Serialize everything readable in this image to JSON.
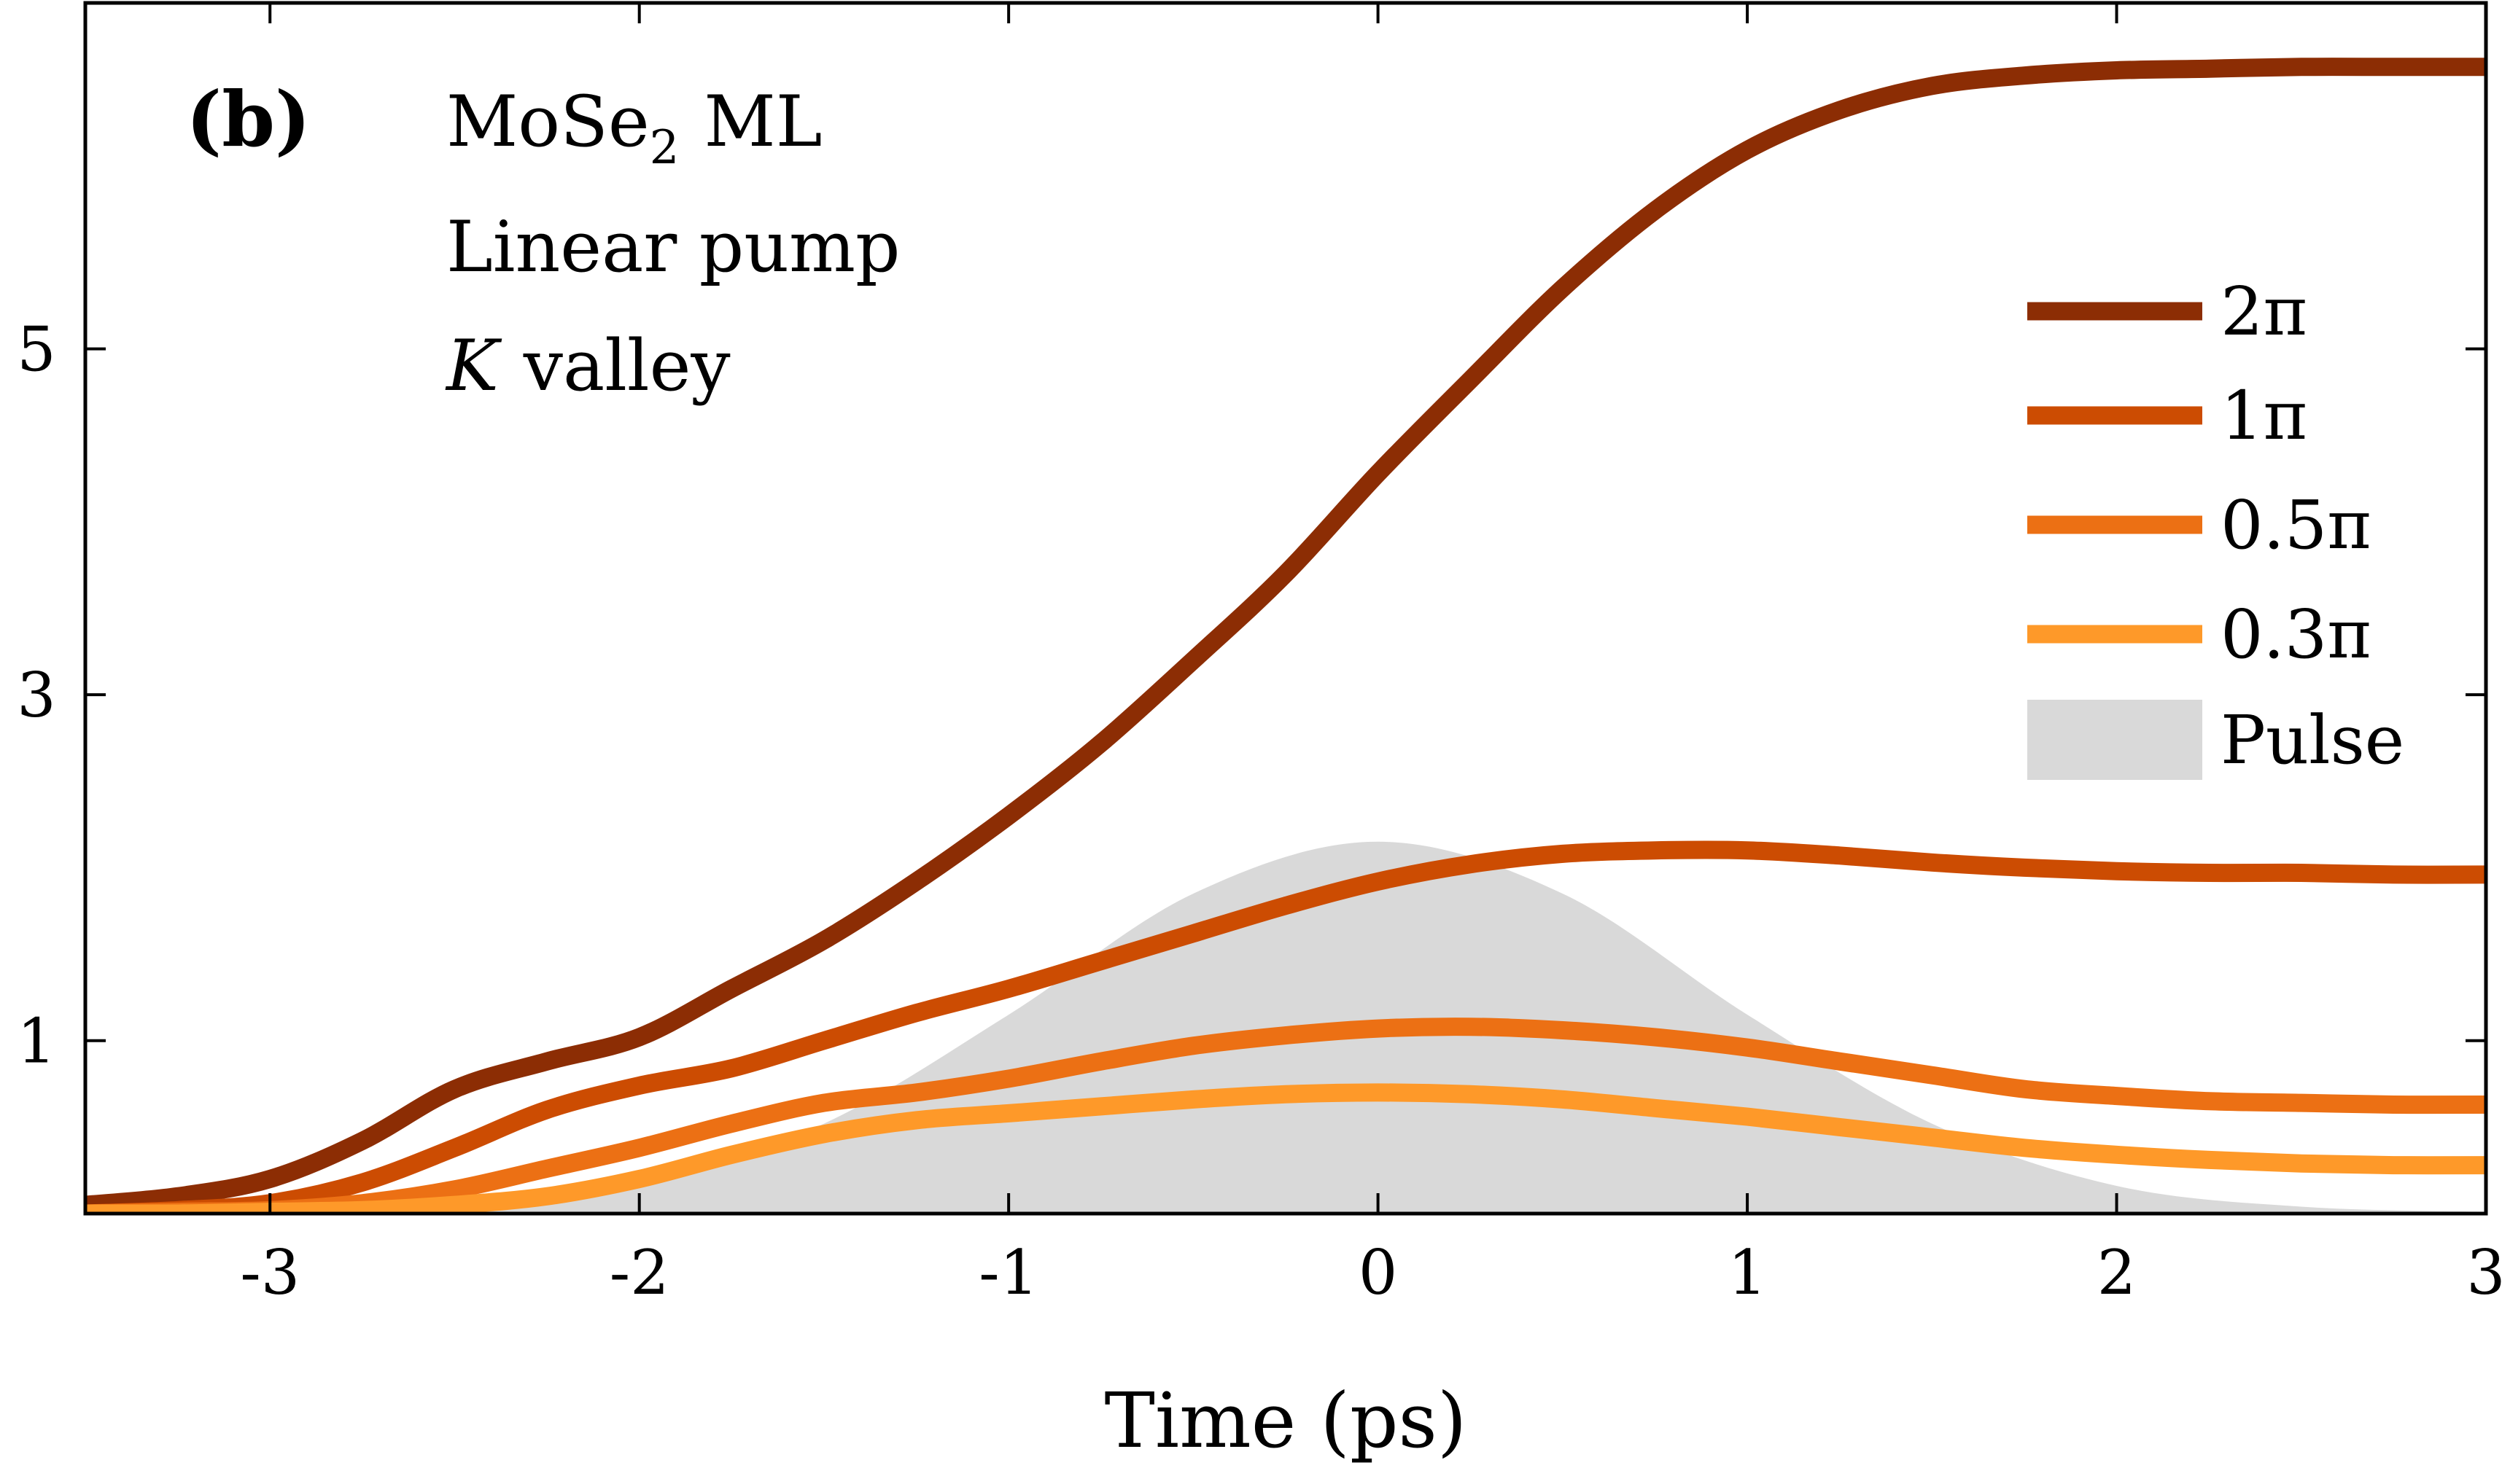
{
  "chart_data": {
    "type": "line",
    "title": "",
    "xlabel": "Time (ps)",
    "ylabel": "",
    "xlim": [
      -3.5,
      3
    ],
    "ylim": [
      0,
      7
    ],
    "xticks": [
      -3,
      -2,
      -1,
      0,
      1,
      2,
      3
    ],
    "xtick_labels": [
      "-3",
      "-2",
      "-1",
      "0",
      "1",
      "2",
      "3"
    ],
    "yticks": [
      1,
      3,
      5
    ],
    "ytick_labels": [
      "1",
      "3",
      "5"
    ],
    "grid": false,
    "legend_position": "right",
    "panel_label": "(b)",
    "annotations": {
      "line1_main": "MoSe",
      "line1_sub": "2",
      "line1_tail": "ML",
      "line2": "Linear pump",
      "line3_italic": "K",
      "line3_tail": "valley"
    },
    "pulse": {
      "name": "Pulse",
      "color": "#d9d9d9",
      "x": [
        -3.5,
        -3.0,
        -2.5,
        -2.0,
        -1.5,
        -1.0,
        -0.5,
        0.0,
        0.5,
        1.0,
        1.5,
        2.0,
        2.5,
        3.0
      ],
      "y": [
        0.0,
        0.01,
        0.04,
        0.16,
        0.52,
        1.15,
        1.85,
        2.15,
        1.85,
        1.15,
        0.52,
        0.16,
        0.04,
        0.01
      ]
    },
    "series": [
      {
        "name": "2π",
        "color": "#8c2d04",
        "x": [
          -3.5,
          -3.25,
          -3.0,
          -2.75,
          -2.5,
          -2.25,
          -2.0,
          -1.75,
          -1.5,
          -1.25,
          -1.0,
          -0.75,
          -0.5,
          -0.25,
          0.0,
          0.25,
          0.5,
          0.75,
          1.0,
          1.25,
          1.5,
          1.75,
          2.0,
          2.25,
          2.5,
          2.75,
          3.0
        ],
        "y": [
          0.05,
          0.1,
          0.2,
          0.42,
          0.72,
          0.88,
          1.02,
          1.3,
          1.58,
          1.92,
          2.3,
          2.72,
          3.2,
          3.7,
          4.28,
          4.82,
          5.35,
          5.8,
          6.15,
          6.38,
          6.52,
          6.58,
          6.61,
          6.62,
          6.63,
          6.63,
          6.63
        ]
      },
      {
        "name": "1π",
        "color": "#cc4c02",
        "x": [
          -3.5,
          -3.25,
          -3.0,
          -2.75,
          -2.5,
          -2.25,
          -2.0,
          -1.75,
          -1.5,
          -1.25,
          -1.0,
          -0.75,
          -0.5,
          -0.25,
          0.0,
          0.25,
          0.5,
          0.75,
          1.0,
          1.25,
          1.5,
          1.75,
          2.0,
          2.25,
          2.5,
          2.75,
          3.0
        ],
        "y": [
          0.0,
          0.02,
          0.06,
          0.18,
          0.38,
          0.6,
          0.74,
          0.84,
          1.0,
          1.16,
          1.3,
          1.46,
          1.62,
          1.78,
          1.92,
          2.02,
          2.08,
          2.1,
          2.1,
          2.07,
          2.03,
          2.0,
          1.98,
          1.97,
          1.97,
          1.96,
          1.96
        ]
      },
      {
        "name": "0.5π",
        "color": "#ec7014",
        "x": [
          -3.5,
          -3.25,
          -3.0,
          -2.75,
          -2.5,
          -2.25,
          -2.0,
          -1.75,
          -1.5,
          -1.25,
          -1.0,
          -0.75,
          -0.5,
          -0.25,
          0.0,
          0.25,
          0.5,
          0.75,
          1.0,
          1.25,
          1.5,
          1.75,
          2.0,
          2.25,
          2.5,
          2.75,
          3.0
        ],
        "y": [
          0.0,
          0.01,
          0.02,
          0.06,
          0.14,
          0.26,
          0.38,
          0.52,
          0.64,
          0.7,
          0.78,
          0.88,
          0.97,
          1.03,
          1.07,
          1.08,
          1.06,
          1.02,
          0.96,
          0.88,
          0.8,
          0.72,
          0.68,
          0.65,
          0.64,
          0.63,
          0.63
        ]
      },
      {
        "name": "0.3π",
        "color": "#fe9929",
        "x": [
          -3.5,
          -3.25,
          -3.0,
          -2.75,
          -2.5,
          -2.25,
          -2.0,
          -1.75,
          -1.5,
          -1.25,
          -1.0,
          -0.75,
          -0.5,
          -0.25,
          0.0,
          0.25,
          0.5,
          0.75,
          1.0,
          1.25,
          1.5,
          1.75,
          2.0,
          2.25,
          2.5,
          2.75,
          3.0
        ],
        "y": [
          0.0,
          0.0,
          0.01,
          0.02,
          0.05,
          0.1,
          0.2,
          0.34,
          0.46,
          0.54,
          0.58,
          0.62,
          0.66,
          0.69,
          0.7,
          0.69,
          0.66,
          0.61,
          0.56,
          0.5,
          0.44,
          0.38,
          0.34,
          0.31,
          0.29,
          0.28,
          0.28
        ]
      }
    ]
  }
}
